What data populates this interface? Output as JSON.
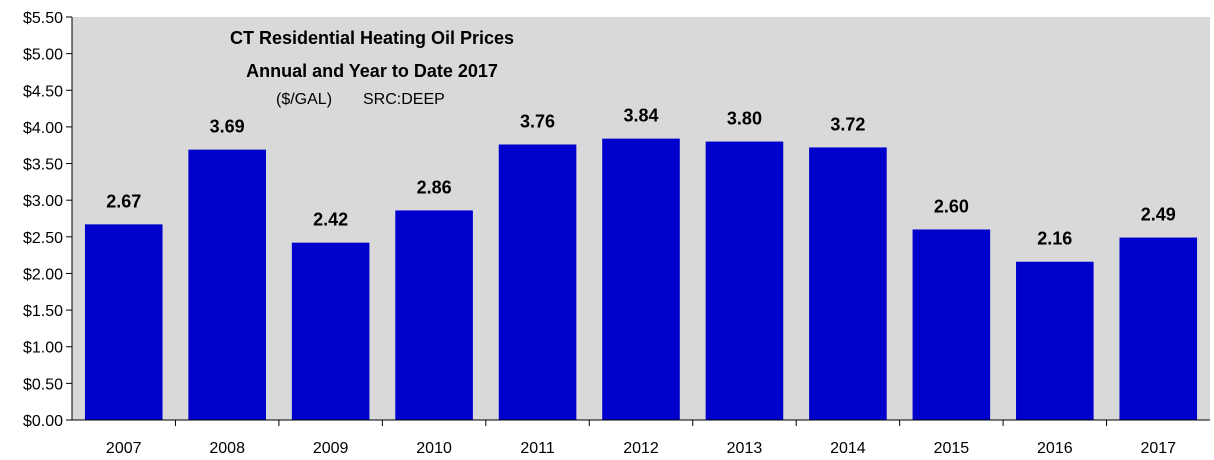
{
  "chart_data": {
    "type": "bar",
    "title": [
      "CT Residential Heating Oil Prices",
      "Annual and Year to Date 2017"
    ],
    "subtitle": [
      "($/GAL)",
      "SRC:DEEP"
    ],
    "categories": [
      "2007",
      "2008",
      "2009",
      "2010",
      "2011",
      "2012",
      "2013",
      "2014",
      "2015",
      "2016",
      "2017"
    ],
    "values": [
      2.67,
      3.69,
      2.42,
      2.86,
      3.76,
      3.84,
      3.8,
      3.72,
      2.6,
      2.16,
      2.49
    ],
    "data_labels": [
      "2.67",
      "3.69",
      "2.42",
      "2.86",
      "3.76",
      "3.84",
      "3.80",
      "3.72",
      "2.60",
      "2.16",
      "2.49"
    ],
    "yticks": [
      "$0.00",
      "$0.50",
      "$1.00",
      "$1.50",
      "$2.00",
      "$2.50",
      "$3.00",
      "$3.50",
      "$4.00",
      "$4.50",
      "$5.00",
      "$5.50"
    ],
    "ylim": [
      0,
      5.5
    ],
    "ytick_step": 0.5,
    "grid": false,
    "legend": "none",
    "colors": {
      "bar": "#0000cc",
      "plot_background": "#d9d9d9",
      "axis": "#000000"
    }
  }
}
